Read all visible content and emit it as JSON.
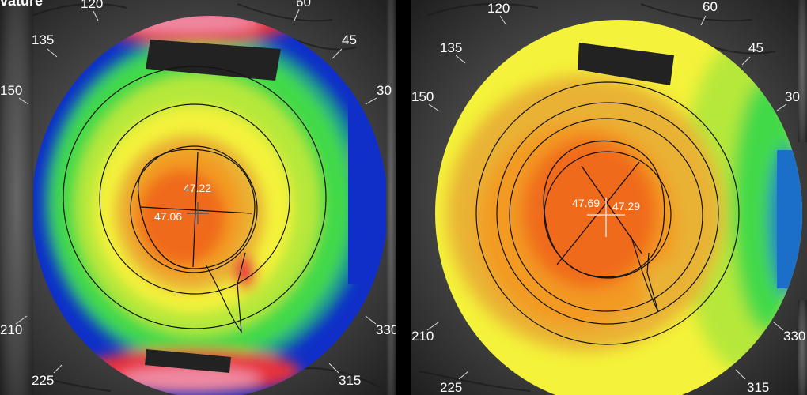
{
  "corner_label": "vature",
  "left_map": {
    "degree_labels": [
      "120",
      "60",
      "135",
      "45",
      "150",
      "30",
      "210",
      "330",
      "225",
      "315"
    ],
    "values": {
      "upper": "47.22",
      "lower": "47.06"
    }
  },
  "right_map": {
    "degree_labels": [
      "120",
      "60",
      "135",
      "45",
      "150",
      "30",
      "210",
      "330",
      "225",
      "315"
    ],
    "values": {
      "left": "47.69",
      "right": "47.29"
    }
  },
  "colors": {
    "divider": "#000000",
    "skin": "#4a4a4a",
    "red": "#e8303a",
    "orange_red": "#f06a1e",
    "orange": "#f39a23",
    "gold": "#e9b234",
    "yellow": "#f4f23a",
    "light_green": "#b6e83a",
    "green": "#43d94a",
    "teal": "#1c9b8d",
    "blue": "#0f2fc8",
    "pink": "#ef8aa2"
  }
}
